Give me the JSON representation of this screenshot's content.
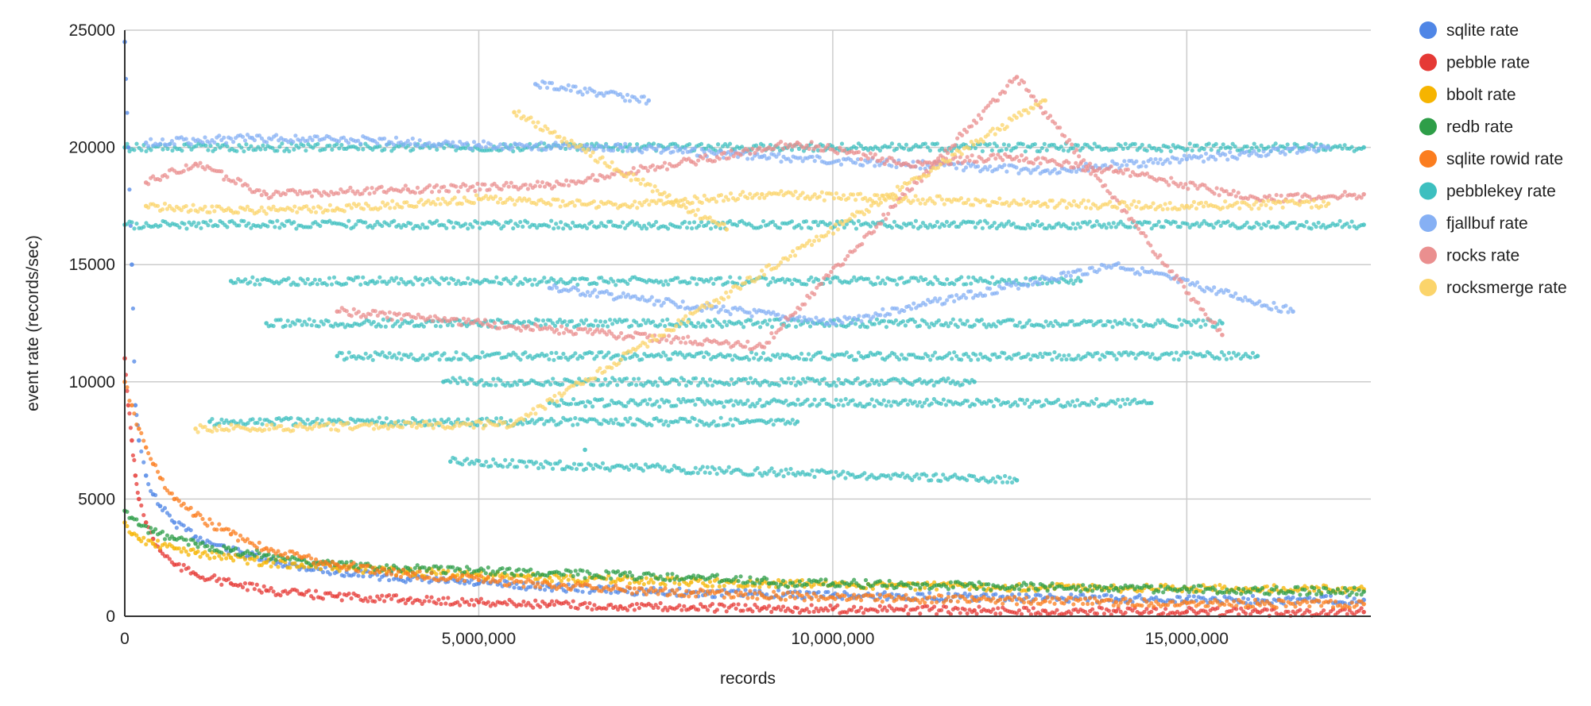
{
  "chart_data": {
    "type": "scatter",
    "title": "",
    "xlabel": "records",
    "ylabel": "event rate (records/sec)",
    "xlim": [
      0,
      17600000
    ],
    "ylim": [
      0,
      25000
    ],
    "x_ticks": [
      0,
      5000000,
      10000000,
      15000000
    ],
    "x_tick_labels": [
      "0",
      "5,000,000",
      "10,000,000",
      "15,000,000"
    ],
    "y_ticks": [
      0,
      5000,
      10000,
      15000,
      20000,
      25000
    ],
    "y_tick_labels": [
      "0",
      "5000",
      "10000",
      "15000",
      "20000",
      "25000"
    ],
    "grid": true,
    "legend_position": "right",
    "series": [
      {
        "name": "sqlite rate",
        "color": "#4f86e6",
        "points": [
          [
            0,
            24500
          ],
          [
            50000,
            20000
          ],
          [
            100000,
            15000
          ],
          [
            150000,
            9000
          ],
          [
            200000,
            7500
          ],
          [
            300000,
            6000
          ],
          [
            400000,
            5200
          ],
          [
            500000,
            4700
          ],
          [
            700000,
            4000
          ],
          [
            1000000,
            3400
          ],
          [
            1500000,
            2800
          ],
          [
            2000000,
            2400
          ],
          [
            2500000,
            2100
          ],
          [
            3000000,
            1900
          ],
          [
            4000000,
            1600
          ],
          [
            5000000,
            1400
          ],
          [
            6000000,
            1250
          ],
          [
            7000000,
            1100
          ],
          [
            8000000,
            1000
          ],
          [
            9000000,
            950
          ],
          [
            10000000,
            900
          ],
          [
            11000000,
            850
          ],
          [
            12000000,
            800
          ],
          [
            13000000,
            780
          ],
          [
            14000000,
            750
          ],
          [
            15000000,
            730
          ],
          [
            16000000,
            710
          ],
          [
            17500000,
            700
          ]
        ]
      },
      {
        "name": "pebble rate",
        "color": "#e53935",
        "points": [
          [
            0,
            11000
          ],
          [
            50000,
            9000
          ],
          [
            100000,
            7500
          ],
          [
            150000,
            6000
          ],
          [
            200000,
            5000
          ],
          [
            300000,
            4000
          ],
          [
            400000,
            3300
          ],
          [
            500000,
            2800
          ],
          [
            700000,
            2200
          ],
          [
            1000000,
            1800
          ],
          [
            1500000,
            1400
          ],
          [
            2000000,
            1100
          ],
          [
            2500000,
            950
          ],
          [
            3000000,
            850
          ],
          [
            4000000,
            700
          ],
          [
            5000000,
            600
          ],
          [
            6000000,
            500
          ],
          [
            7000000,
            420
          ],
          [
            8000000,
            370
          ],
          [
            9000000,
            330
          ],
          [
            10000000,
            300
          ],
          [
            11000000,
            270
          ],
          [
            12000000,
            250
          ],
          [
            13000000,
            230
          ],
          [
            14000000,
            210
          ],
          [
            15000000,
            200
          ],
          [
            16000000,
            190
          ],
          [
            17500000,
            180
          ]
        ]
      },
      {
        "name": "bbolt rate",
        "color": "#f6b400",
        "points": [
          [
            0,
            4000
          ],
          [
            100000,
            3500
          ],
          [
            200000,
            3300
          ],
          [
            400000,
            3100
          ],
          [
            700000,
            2900
          ],
          [
            1000000,
            2700
          ],
          [
            1500000,
            2500
          ],
          [
            2000000,
            2300
          ],
          [
            2500000,
            2200
          ],
          [
            3000000,
            2050
          ],
          [
            4000000,
            1900
          ],
          [
            5000000,
            1750
          ],
          [
            6000000,
            1650
          ],
          [
            7000000,
            1550
          ],
          [
            8000000,
            1450
          ],
          [
            9000000,
            1400
          ],
          [
            10000000,
            1350
          ],
          [
            11000000,
            1300
          ],
          [
            12000000,
            1250
          ],
          [
            13000000,
            1220
          ],
          [
            14000000,
            1200
          ],
          [
            15000000,
            1180
          ],
          [
            16000000,
            1160
          ],
          [
            17500000,
            1150
          ]
        ]
      },
      {
        "name": "redb rate",
        "color": "#2e9e48",
        "points": [
          [
            0,
            4500
          ],
          [
            100000,
            4200
          ],
          [
            200000,
            3900
          ],
          [
            400000,
            3600
          ],
          [
            700000,
            3300
          ],
          [
            1000000,
            3100
          ],
          [
            1500000,
            2800
          ],
          [
            2000000,
            2600
          ],
          [
            2500000,
            2400
          ],
          [
            3000000,
            2200
          ],
          [
            4000000,
            2050
          ],
          [
            5000000,
            1950
          ],
          [
            6000000,
            1850
          ],
          [
            7000000,
            1750
          ],
          [
            8000000,
            1650
          ],
          [
            9000000,
            1550
          ],
          [
            9100000,
            1400
          ],
          [
            10000000,
            1400
          ],
          [
            11000000,
            1350
          ],
          [
            12000000,
            1300
          ],
          [
            13000000,
            1250
          ],
          [
            14000000,
            1200
          ],
          [
            15000000,
            1150
          ],
          [
            16000000,
            1100
          ],
          [
            17500000,
            1050
          ]
        ]
      },
      {
        "name": "sqlite rowid rate",
        "color": "#fb7d1f",
        "points": [
          [
            0,
            10000
          ],
          [
            100000,
            9000
          ],
          [
            200000,
            8000
          ],
          [
            300000,
            7200
          ],
          [
            400000,
            6500
          ],
          [
            500000,
            5900
          ],
          [
            700000,
            5000
          ],
          [
            1000000,
            4300
          ],
          [
            1500000,
            3500
          ],
          [
            2000000,
            2900
          ],
          [
            2500000,
            2500
          ],
          [
            3000000,
            2200
          ],
          [
            4000000,
            1800
          ],
          [
            5000000,
            1550
          ],
          [
            6000000,
            1350
          ],
          [
            7000000,
            1150
          ],
          [
            8000000,
            1000
          ],
          [
            9000000,
            900
          ],
          [
            10000000,
            800
          ],
          [
            11000000,
            750
          ],
          [
            12000000,
            700
          ],
          [
            13000000,
            650
          ],
          [
            14000000,
            600
          ],
          [
            15000000,
            570
          ],
          [
            16000000,
            540
          ],
          [
            17500000,
            520
          ]
        ]
      },
      {
        "name": "pebblekey rate",
        "color": "#3dbfbf",
        "points": [
          [
            0,
            20000
          ],
          [
            17500000,
            20000
          ],
          [
            0,
            16700
          ],
          [
            17500000,
            16700
          ],
          [
            1500000,
            14300
          ],
          [
            3500000,
            14300
          ],
          [
            13500000,
            14300
          ],
          [
            2000000,
            12500
          ],
          [
            8000000,
            12500
          ],
          [
            15500000,
            12500
          ],
          [
            3000000,
            11100
          ],
          [
            10500000,
            11100
          ],
          [
            16000000,
            11100
          ],
          [
            4500000,
            10000
          ],
          [
            12000000,
            10000
          ],
          [
            6000000,
            9100
          ],
          [
            14500000,
            9100
          ],
          [
            1200000,
            8300
          ],
          [
            9500000,
            8300
          ],
          [
            6500000,
            7100
          ],
          [
            4600000,
            6600
          ],
          [
            12600000,
            5800
          ]
        ]
      },
      {
        "name": "fjallbuf rate",
        "color": "#86b0f4",
        "points": [
          [
            300000,
            20200
          ],
          [
            1800000,
            20400
          ],
          [
            3500000,
            20300
          ],
          [
            5000000,
            20100
          ],
          [
            7000000,
            20000
          ],
          [
            9000000,
            19600
          ],
          [
            11000000,
            19300
          ],
          [
            13000000,
            19000
          ],
          [
            15000000,
            19500
          ],
          [
            17000000,
            20000
          ],
          [
            6000000,
            14000
          ],
          [
            10000000,
            12500
          ],
          [
            14000000,
            15000
          ],
          [
            16500000,
            13000
          ],
          [
            5800000,
            22700
          ],
          [
            7400000,
            22000
          ]
        ]
      },
      {
        "name": "rocks rate",
        "color": "#ea8f8f",
        "points": [
          [
            300000,
            18500
          ],
          [
            1000000,
            19300
          ],
          [
            2000000,
            18000
          ],
          [
            4000000,
            18200
          ],
          [
            6000000,
            18400
          ],
          [
            8000000,
            19400
          ],
          [
            9500000,
            20200
          ],
          [
            11000000,
            19300
          ],
          [
            12500000,
            19600
          ],
          [
            14000000,
            19000
          ],
          [
            16000000,
            17800
          ],
          [
            17500000,
            18000
          ],
          [
            3000000,
            13000
          ],
          [
            9000000,
            11500
          ],
          [
            12600000,
            23000
          ],
          [
            15500000,
            12000
          ]
        ]
      },
      {
        "name": "rocksmerge rate",
        "color": "#fbd46b",
        "points": [
          [
            300000,
            17500
          ],
          [
            1500000,
            17300
          ],
          [
            3000000,
            17400
          ],
          [
            5000000,
            17800
          ],
          [
            7000000,
            17500
          ],
          [
            9000000,
            18000
          ],
          [
            11000000,
            17800
          ],
          [
            13000000,
            17600
          ],
          [
            15000000,
            17500
          ],
          [
            17000000,
            17600
          ],
          [
            5500000,
            21500
          ],
          [
            8500000,
            16500
          ],
          [
            1000000,
            8000
          ],
          [
            5500000,
            8200
          ],
          [
            13000000,
            22000
          ]
        ]
      }
    ]
  }
}
